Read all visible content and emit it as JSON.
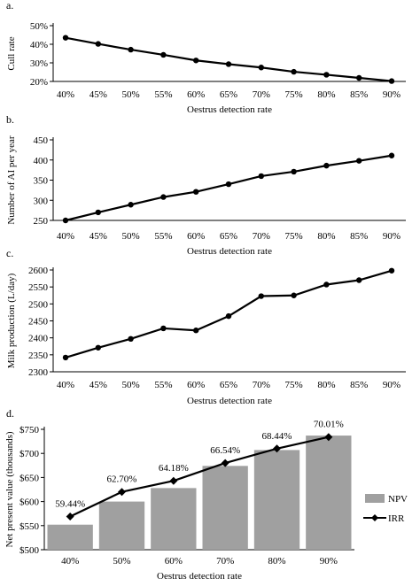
{
  "chart_data": [
    {
      "type": "line",
      "panel_label": "a.",
      "xlabel": "Oestrus detection rate",
      "ylabel": "Cull rate",
      "categories": [
        "40%",
        "45%",
        "50%",
        "55%",
        "60%",
        "65%",
        "70%",
        "75%",
        "80%",
        "85%",
        "90%"
      ],
      "values": [
        43.5,
        40.2,
        37.1,
        34.3,
        31.3,
        29.3,
        27.5,
        25.2,
        23.6,
        21.9,
        20.2
      ],
      "ylim": [
        20,
        50
      ],
      "yticks": [
        20,
        30,
        40,
        50
      ],
      "ytick_labels": [
        "20%",
        "30%",
        "40%",
        "50%"
      ],
      "color": "#000000"
    },
    {
      "type": "line",
      "panel_label": "b.",
      "xlabel": "Oestrus detection rate",
      "ylabel": "Number of AI per year",
      "categories": [
        "40%",
        "45%",
        "50%",
        "55%",
        "60%",
        "65%",
        "70%",
        "75%",
        "80%",
        "85%",
        "90%"
      ],
      "values": [
        250,
        270,
        289,
        308,
        321,
        340,
        360,
        371,
        386,
        398,
        411
      ],
      "ylim": [
        250,
        450
      ],
      "yticks": [
        250,
        300,
        350,
        400,
        450
      ],
      "ytick_labels": [
        "250",
        "300",
        "350",
        "400",
        "450"
      ],
      "color": "#000000"
    },
    {
      "type": "line",
      "panel_label": "c.",
      "xlabel": "Oestrus detection rate",
      "ylabel": "Milk production (L/day)",
      "categories": [
        "40%",
        "45%",
        "50%",
        "55%",
        "60%",
        "65%",
        "70%",
        "75%",
        "80%",
        "85%",
        "90%"
      ],
      "values": [
        2342,
        2371,
        2397,
        2428,
        2422,
        2464,
        2523,
        2525,
        2557,
        2570,
        2598
      ],
      "ylim": [
        2300,
        2600
      ],
      "yticks": [
        2300,
        2350,
        2400,
        2450,
        2500,
        2550,
        2600
      ],
      "ytick_labels": [
        "2300",
        "2350",
        "2400",
        "2450",
        "2500",
        "2550",
        "2600"
      ],
      "color": "#000000"
    },
    {
      "type": "bar",
      "panel_label": "d.",
      "xlabel": "Oestrus detection rate",
      "ylabel": "Net present value (thousands)",
      "categories": [
        "40%",
        "50%",
        "60%",
        "70%",
        "80%",
        "90%"
      ],
      "ylim": [
        500,
        750
      ],
      "yticks": [
        500,
        550,
        600,
        650,
        700,
        750
      ],
      "ytick_labels": [
        "$500",
        "$550",
        "$600",
        "$650",
        "$700",
        "$750"
      ],
      "legend_position": "right",
      "series": [
        {
          "name": "NPV",
          "kind": "bar",
          "color": "#a0a0a0",
          "values": [
            552,
            600,
            628,
            674,
            707,
            737
          ]
        },
        {
          "name": "IRR",
          "kind": "line",
          "color": "#000000",
          "values": [
            569,
            620,
            643,
            680,
            710,
            734
          ],
          "labels": [
            "59.44%",
            "62.70%",
            "64.18%",
            "66.54%",
            "68.44%",
            "70.01%"
          ]
        }
      ]
    }
  ]
}
